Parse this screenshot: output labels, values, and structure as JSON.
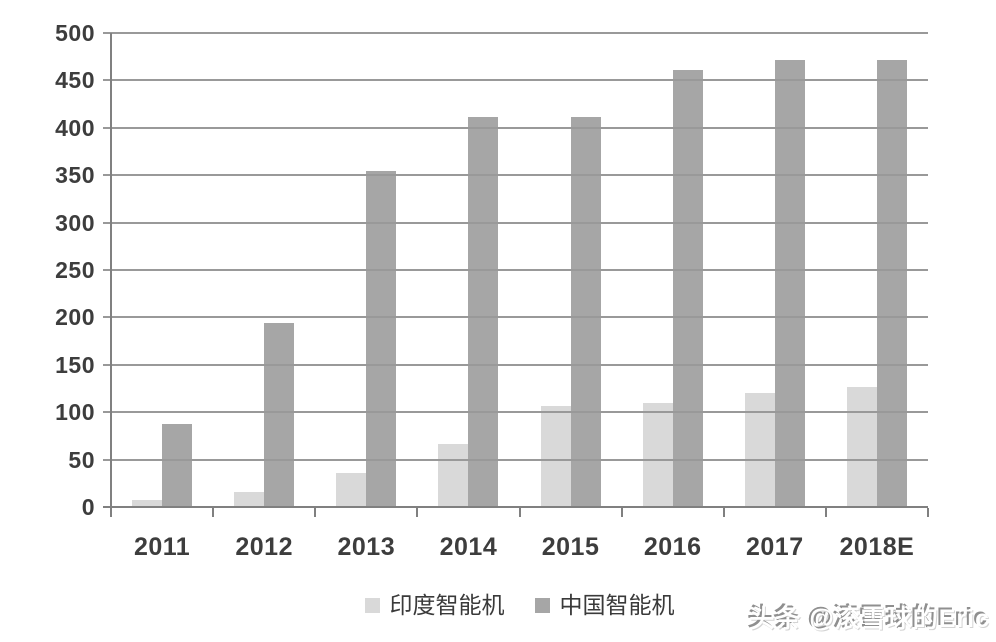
{
  "chart_data": {
    "type": "bar",
    "title": "",
    "xlabel": "",
    "ylabel": "",
    "categories": [
      "2011",
      "2012",
      "2013",
      "2014",
      "2015",
      "2016",
      "2017",
      "2018E"
    ],
    "series": [
      {
        "name": "印度智能机",
        "color": "#d9d9d9",
        "values": [
          7,
          16,
          36,
          66,
          107,
          110,
          120,
          127
        ]
      },
      {
        "name": "中国智能机",
        "color": "#a6a6a6",
        "values": [
          88,
          194,
          354,
          411,
          411,
          461,
          472,
          472
        ]
      }
    ],
    "ylim": [
      0,
      500
    ],
    "yticks": [
      0,
      50,
      100,
      150,
      200,
      250,
      300,
      350,
      400,
      450,
      500
    ],
    "grid": true,
    "gridlines_drawn_over_bars": true,
    "legend_position": "bottom"
  },
  "colors": {
    "background": "#ffffff",
    "gridline": "#999999",
    "axis": "#808080",
    "tick_text": "#3d3d3d",
    "watermark_text": "#ffffff",
    "watermark_shadow": "#8f8f8f"
  },
  "watermark": {
    "text": "头条 @滚雪球的Eric"
  }
}
